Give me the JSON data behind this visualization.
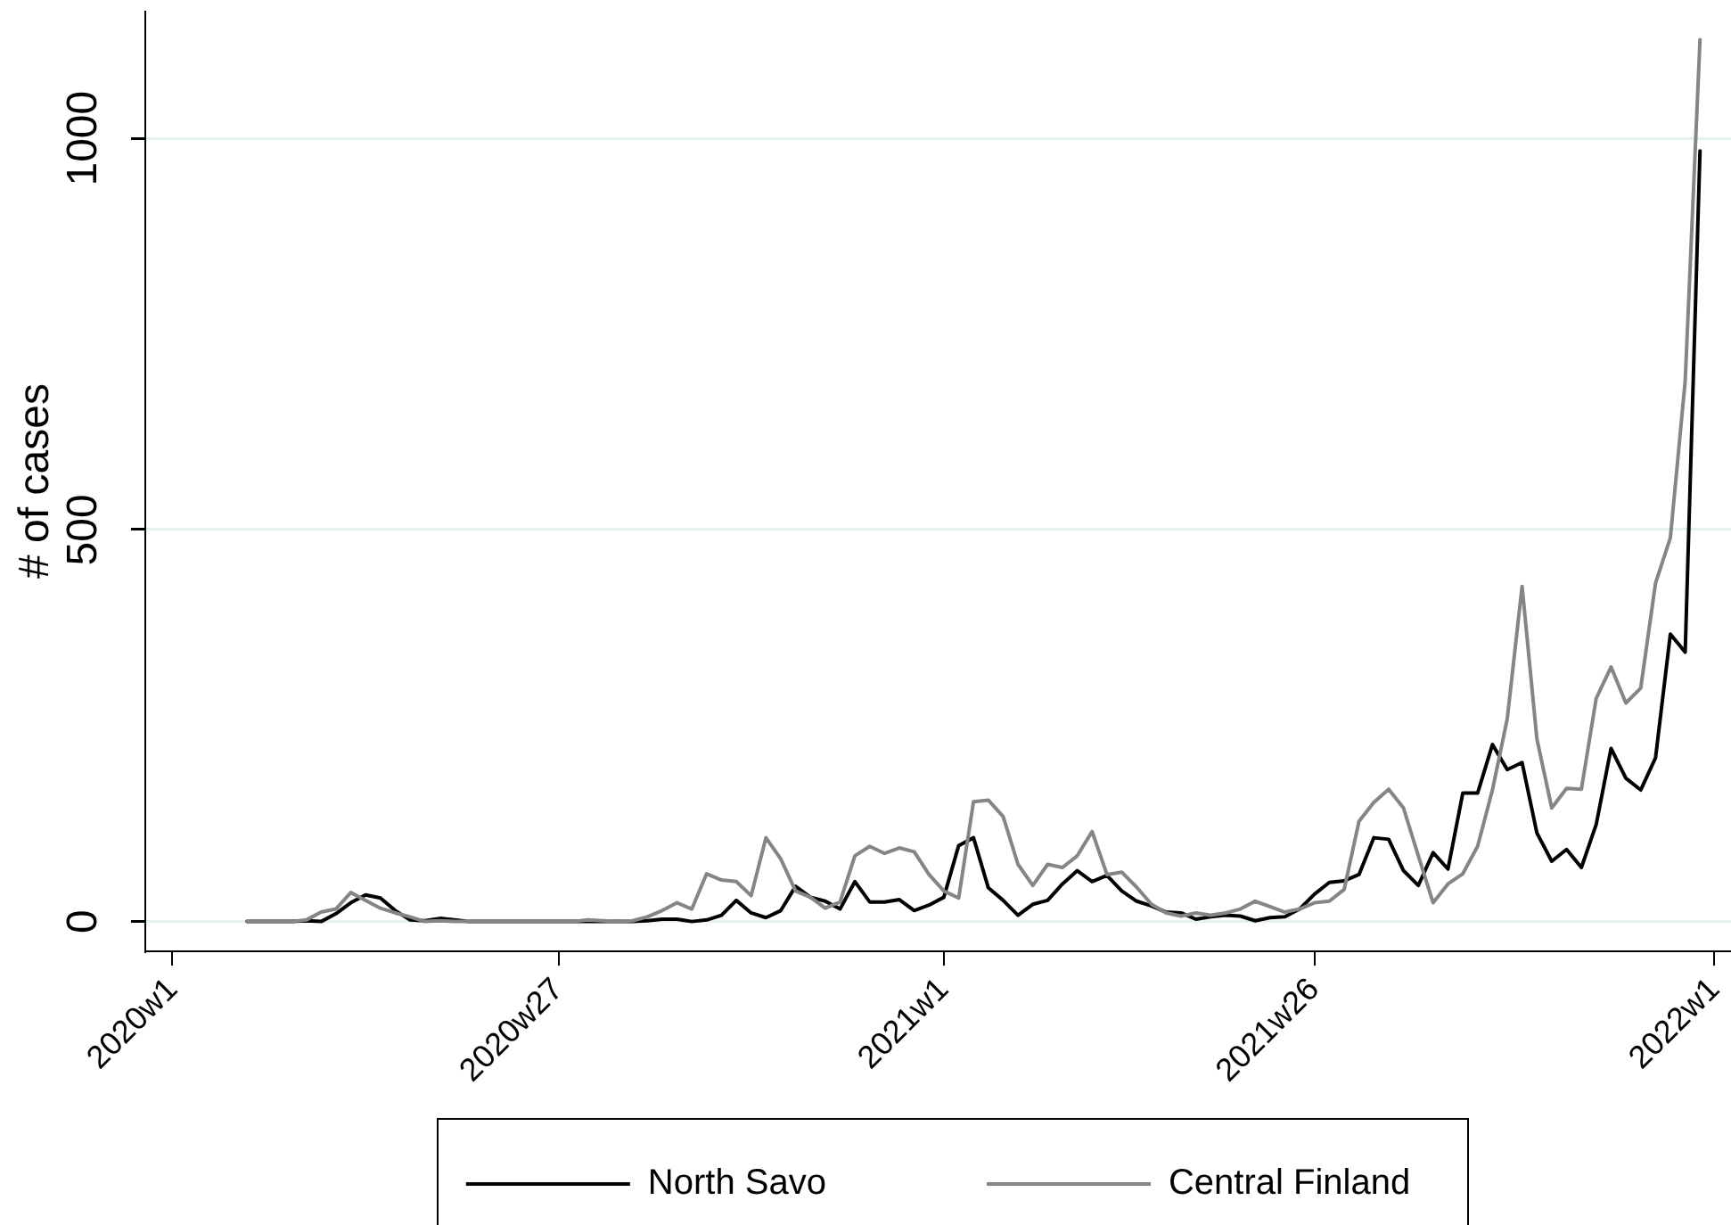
{
  "chart_data": {
    "type": "line",
    "ylabel": "# of cases",
    "categories": [
      "2020w1",
      null,
      null,
      null,
      null,
      null,
      null,
      null,
      null,
      null,
      null,
      null,
      null,
      null,
      null,
      null,
      null,
      null,
      null,
      null,
      null,
      null,
      null,
      null,
      null,
      null,
      "2020w27",
      null,
      null,
      null,
      null,
      null,
      null,
      null,
      null,
      null,
      null,
      null,
      null,
      null,
      null,
      null,
      null,
      null,
      null,
      null,
      null,
      null,
      null,
      null,
      null,
      null,
      "2021w1",
      null,
      null,
      null,
      null,
      null,
      null,
      null,
      null,
      null,
      null,
      null,
      null,
      null,
      null,
      null,
      null,
      null,
      null,
      null,
      null,
      null,
      null,
      null,
      null,
      "2021w26",
      null,
      null,
      null,
      null,
      null,
      null,
      null,
      null,
      null,
      null,
      null,
      null,
      null,
      null,
      null,
      null,
      null,
      null,
      null,
      null,
      null,
      null,
      null,
      null,
      null,
      null,
      "2022w1"
    ],
    "series": [
      {
        "name": "North Savo",
        "color": "#000000",
        "values": [
          null,
          null,
          null,
          null,
          null,
          0,
          0,
          0,
          0,
          1,
          0,
          10,
          24,
          34,
          30,
          14,
          2,
          1,
          4,
          2,
          0,
          0,
          0,
          0,
          0,
          0,
          0,
          0,
          0,
          0,
          0,
          0,
          1,
          3,
          3,
          0,
          2,
          8,
          27,
          11,
          5,
          14,
          45,
          31,
          26,
          16,
          51,
          25,
          25,
          28,
          14,
          21,
          31,
          97,
          107,
          43,
          27,
          8,
          22,
          27,
          48,
          65,
          51,
          59,
          39,
          26,
          20,
          12,
          11,
          3,
          6,
          8,
          7,
          1,
          5,
          6,
          16,
          35,
          50,
          52,
          60,
          107,
          105,
          65,
          46,
          88,
          67,
          164,
          164,
          226,
          194,
          203,
          113,
          77,
          92,
          69,
          124,
          221,
          183,
          168,
          209,
          367,
          344,
          984,
          null
        ]
      },
      {
        "name": "Central Finland",
        "color": "#858585",
        "values": [
          null,
          null,
          null,
          null,
          null,
          0,
          0,
          0,
          0,
          2,
          12,
          16,
          37,
          27,
          17,
          11,
          6,
          0,
          1,
          0,
          0,
          0,
          0,
          0,
          0,
          0,
          0,
          0,
          2,
          1,
          0,
          1,
          6,
          14,
          24,
          16,
          61,
          53,
          51,
          33,
          107,
          80,
          39,
          31,
          17,
          25,
          84,
          96,
          87,
          94,
          89,
          60,
          39,
          30,
          153,
          155,
          134,
          73,
          46,
          73,
          69,
          84,
          115,
          60,
          63,
          44,
          22,
          11,
          7,
          11,
          8,
          11,
          16,
          26,
          19,
          12,
          16,
          24,
          26,
          41,
          128,
          152,
          169,
          145,
          84,
          24,
          48,
          61,
          96,
          168,
          259,
          428,
          233,
          145,
          170,
          169,
          285,
          325,
          279,
          298,
          432,
          490,
          690,
          1126,
          null
        ]
      }
    ],
    "ylim": [
      -38,
      1163
    ],
    "yticks": [
      0,
      500,
      1000
    ],
    "grid": "y",
    "legend": "bottom"
  }
}
